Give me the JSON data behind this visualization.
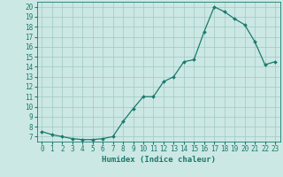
{
  "x": [
    0,
    1,
    2,
    3,
    4,
    5,
    6,
    7,
    8,
    9,
    10,
    11,
    12,
    13,
    14,
    15,
    16,
    17,
    18,
    19,
    20,
    21,
    22,
    23
  ],
  "y": [
    7.5,
    7.2,
    7.0,
    6.8,
    6.7,
    6.7,
    6.8,
    7.0,
    8.5,
    9.8,
    11.0,
    11.0,
    12.5,
    13.0,
    14.5,
    14.7,
    17.5,
    20.0,
    19.5,
    18.8,
    18.2,
    16.5,
    14.2,
    14.5
  ],
  "xlabel": "Humidex (Indice chaleur)",
  "xlim": [
    -0.5,
    23.5
  ],
  "ylim": [
    6.5,
    20.5
  ],
  "yticks": [
    7,
    8,
    9,
    10,
    11,
    12,
    13,
    14,
    15,
    16,
    17,
    18,
    19,
    20
  ],
  "xticks": [
    0,
    1,
    2,
    3,
    4,
    5,
    6,
    7,
    8,
    9,
    10,
    11,
    12,
    13,
    14,
    15,
    16,
    17,
    18,
    19,
    20,
    21,
    22,
    23
  ],
  "line_color": "#1a7a6e",
  "marker_color": "#1a7a6e",
  "bg_color": "#cce8e4",
  "grid_color": "#a0c8c4",
  "tick_fontsize": 5.5,
  "xlabel_fontsize": 6.5
}
